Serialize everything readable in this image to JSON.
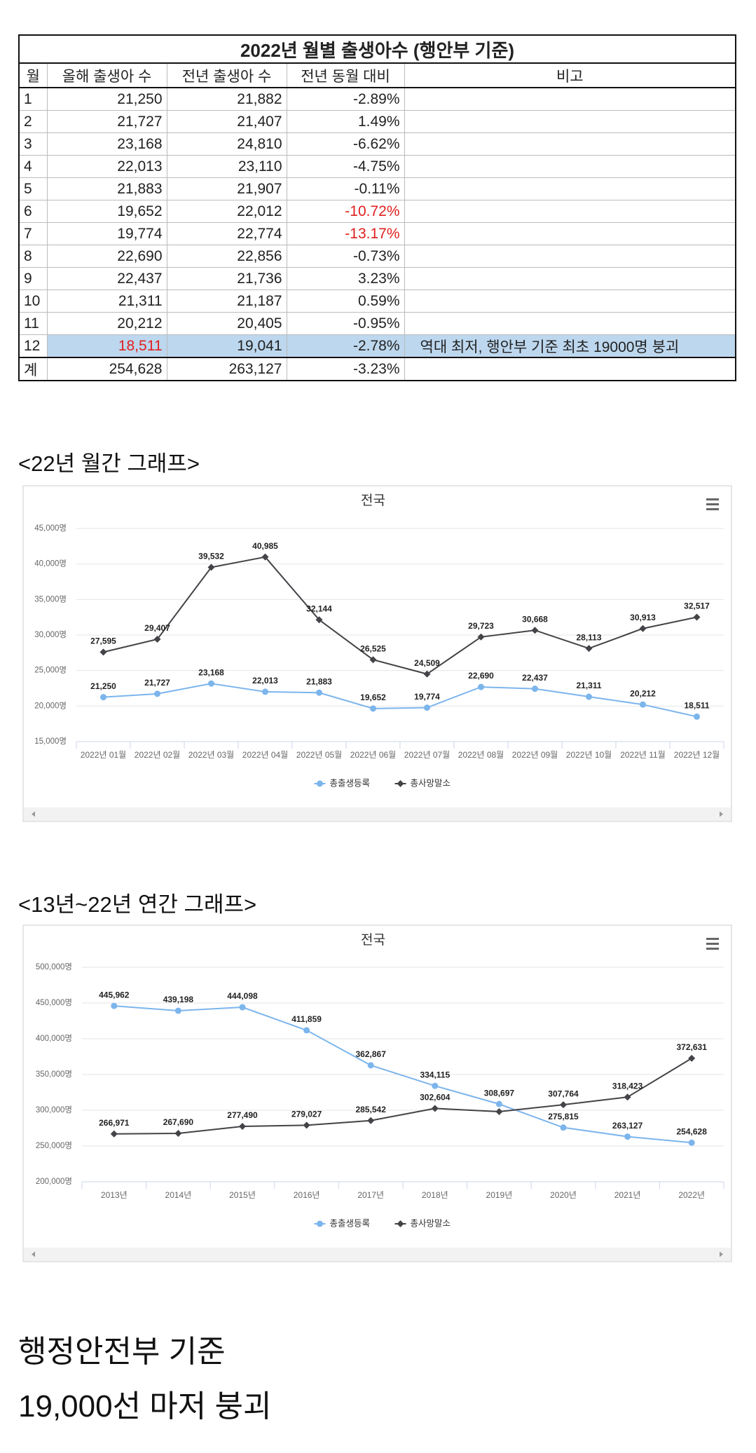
{
  "table": {
    "title": "2022년 월별 출생아수 (행안부 기준)",
    "headers": [
      "월",
      "올해 출생아 수",
      "전년 출생아 수",
      "전년 동월 대비",
      "비고"
    ],
    "rows": [
      [
        "1",
        "21,250",
        "21,882",
        "-2.89%"
      ],
      [
        "2",
        "21,727",
        "21,407",
        "1.49%"
      ],
      [
        "3",
        "23,168",
        "24,810",
        "-6.62%"
      ],
      [
        "4",
        "22,013",
        "23,110",
        "-4.75%"
      ],
      [
        "5",
        "21,883",
        "21,907",
        "-0.11%"
      ],
      [
        "6",
        "19,652",
        "22,012",
        "-10.72%"
      ],
      [
        "7",
        "19,774",
        "22,774",
        "-13.17%"
      ],
      [
        "8",
        "22,690",
        "22,856",
        "-0.73%"
      ],
      [
        "9",
        "22,437",
        "21,736",
        "3.23%"
      ],
      [
        "10",
        "21,311",
        "21,187",
        "0.59%"
      ],
      [
        "11",
        "20,212",
        "20,405",
        "-0.95%"
      ],
      [
        "12",
        "18,511",
        "19,041",
        "-2.78%",
        "역대 최저, 행안부 기준 최초 19000명 붕괴"
      ],
      [
        "계",
        "254,628",
        "263,127",
        "-3.23%"
      ]
    ]
  },
  "headings": [
    "<22년 월간 그래프>",
    "<13년~22년 연간 그래프>"
  ],
  "chart_data": [
    {
      "type": "line",
      "title": "전국",
      "categories": [
        "2022년 01월",
        "2022년 02월",
        "2022년 03월",
        "2022년 04월",
        "2022년 05월",
        "2022년 06월",
        "2022년 07월",
        "2022년 08월",
        "2022년 09월",
        "2022년 10월",
        "2022년 11월",
        "2022년 12월"
      ],
      "ylim": [
        15000,
        45000
      ],
      "yticks": [
        {
          "value": 15000,
          "label": "15,000명"
        },
        {
          "value": 20000,
          "label": "20,000명"
        },
        {
          "value": 25000,
          "label": "25,000명"
        },
        {
          "value": 30000,
          "label": "30,000명"
        },
        {
          "value": 35000,
          "label": "35,000명"
        },
        {
          "value": 40000,
          "label": "40,000명"
        },
        {
          "value": 45000,
          "label": "45,000명"
        }
      ],
      "grid": true,
      "series": [
        {
          "name": "총출생등록",
          "color": "#7cb5ec",
          "values": [
            21250,
            21727,
            23168,
            22013,
            21883,
            19652,
            19774,
            22690,
            22437,
            21311,
            20212,
            18511
          ],
          "value_labels": [
            "21,250",
            "21,727",
            "23,168",
            "22,013",
            "21,883",
            "19,652",
            "19,774",
            "22,690",
            "22,437",
            "21,311",
            "20,212",
            "18,511"
          ]
        },
        {
          "name": "총사망말소",
          "color": "#434348",
          "values": [
            27595,
            29407,
            39532,
            40985,
            32144,
            26525,
            24509,
            29723,
            30668,
            28113,
            30913,
            32517
          ],
          "value_labels": [
            "27,595",
            "29,407",
            "39,532",
            "40,985",
            "32,144",
            "26,525",
            "24,509",
            "29,723",
            "30,668",
            "28,113",
            "30,913",
            "32,517"
          ]
        }
      ]
    },
    {
      "type": "line",
      "title": "전국",
      "categories": [
        "2013년",
        "2014년",
        "2015년",
        "2016년",
        "2017년",
        "2018년",
        "2019년",
        "2020년",
        "2021년",
        "2022년"
      ],
      "ylim": [
        200000,
        500000
      ],
      "yticks": [
        {
          "value": 200000,
          "label": "200,000명"
        },
        {
          "value": 250000,
          "label": "250,000명"
        },
        {
          "value": 300000,
          "label": "300,000명"
        },
        {
          "value": 350000,
          "label": "350,000명"
        },
        {
          "value": 400000,
          "label": "400,000명"
        },
        {
          "value": 450000,
          "label": "450,000명"
        },
        {
          "value": 500000,
          "label": "500,000명"
        }
      ],
      "grid": true,
      "series": [
        {
          "name": "총출생등록",
          "color": "#7cb5ec",
          "values": [
            445962,
            439198,
            444098,
            411859,
            362867,
            334115,
            308697,
            275815,
            263127,
            254628
          ],
          "value_labels": [
            "445,962",
            "439,198",
            "444,098",
            "411,859",
            "362,867",
            "334,115",
            "308,697",
            "275,815",
            "263,127",
            "254,628"
          ]
        },
        {
          "name": "총사망말소",
          "color": "#434348",
          "values": [
            266971,
            267690,
            277490,
            279027,
            285542,
            302604,
            298000,
            307764,
            318423,
            372631
          ],
          "value_labels": [
            "266,971",
            "267,690",
            "277,490",
            "279,027",
            "285,542",
            "302,604",
            null,
            "307,764",
            "318,423",
            "372,631"
          ]
        }
      ]
    }
  ],
  "footer": [
    "행정안전부 기준",
    "19,000선 마저 붕괴"
  ]
}
